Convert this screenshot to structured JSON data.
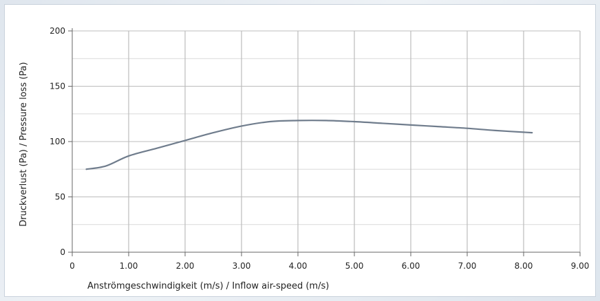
{
  "chart_data": {
    "type": "line",
    "title": "",
    "xlabel": "Anströmgeschwindigkeit (m/s) / Inflow air-speed (m/s)",
    "ylabel": "Druckverlust (Pa) / Pressure loss (Pa)",
    "xlim": [
      0,
      9
    ],
    "ylim": [
      0,
      200
    ],
    "x_ticks": [
      0,
      1,
      2,
      3,
      4,
      5,
      6,
      7,
      8,
      9
    ],
    "x_tick_labels": [
      "0",
      "1.00",
      "2.00",
      "3.00",
      "4.00",
      "5.00",
      "6.00",
      "7.00",
      "8.00",
      "9.00"
    ],
    "y_ticks": [
      0,
      50,
      100,
      150,
      200
    ],
    "y_tick_labels": [
      "0",
      "50",
      "100",
      "150",
      "200"
    ],
    "y_minor_ticks": [
      25,
      75,
      125,
      175
    ],
    "grid": true,
    "legend": "none",
    "colors": {
      "line": "#6f7c8c",
      "grid_major": "#bcbcbc",
      "grid_minor": "#d9d9d9",
      "axis": "#666666"
    },
    "series": [
      {
        "x": [
          0.25,
          0.6,
          1.0,
          1.5,
          2.0,
          2.5,
          3.0,
          3.5,
          4.0,
          4.5,
          5.0,
          5.5,
          6.0,
          6.5,
          7.0,
          7.5,
          8.15
        ],
        "values": [
          75,
          78,
          87,
          94,
          101,
          108,
          114,
          118,
          119,
          119,
          118,
          116.5,
          115,
          113.5,
          112,
          110,
          108
        ]
      }
    ]
  }
}
